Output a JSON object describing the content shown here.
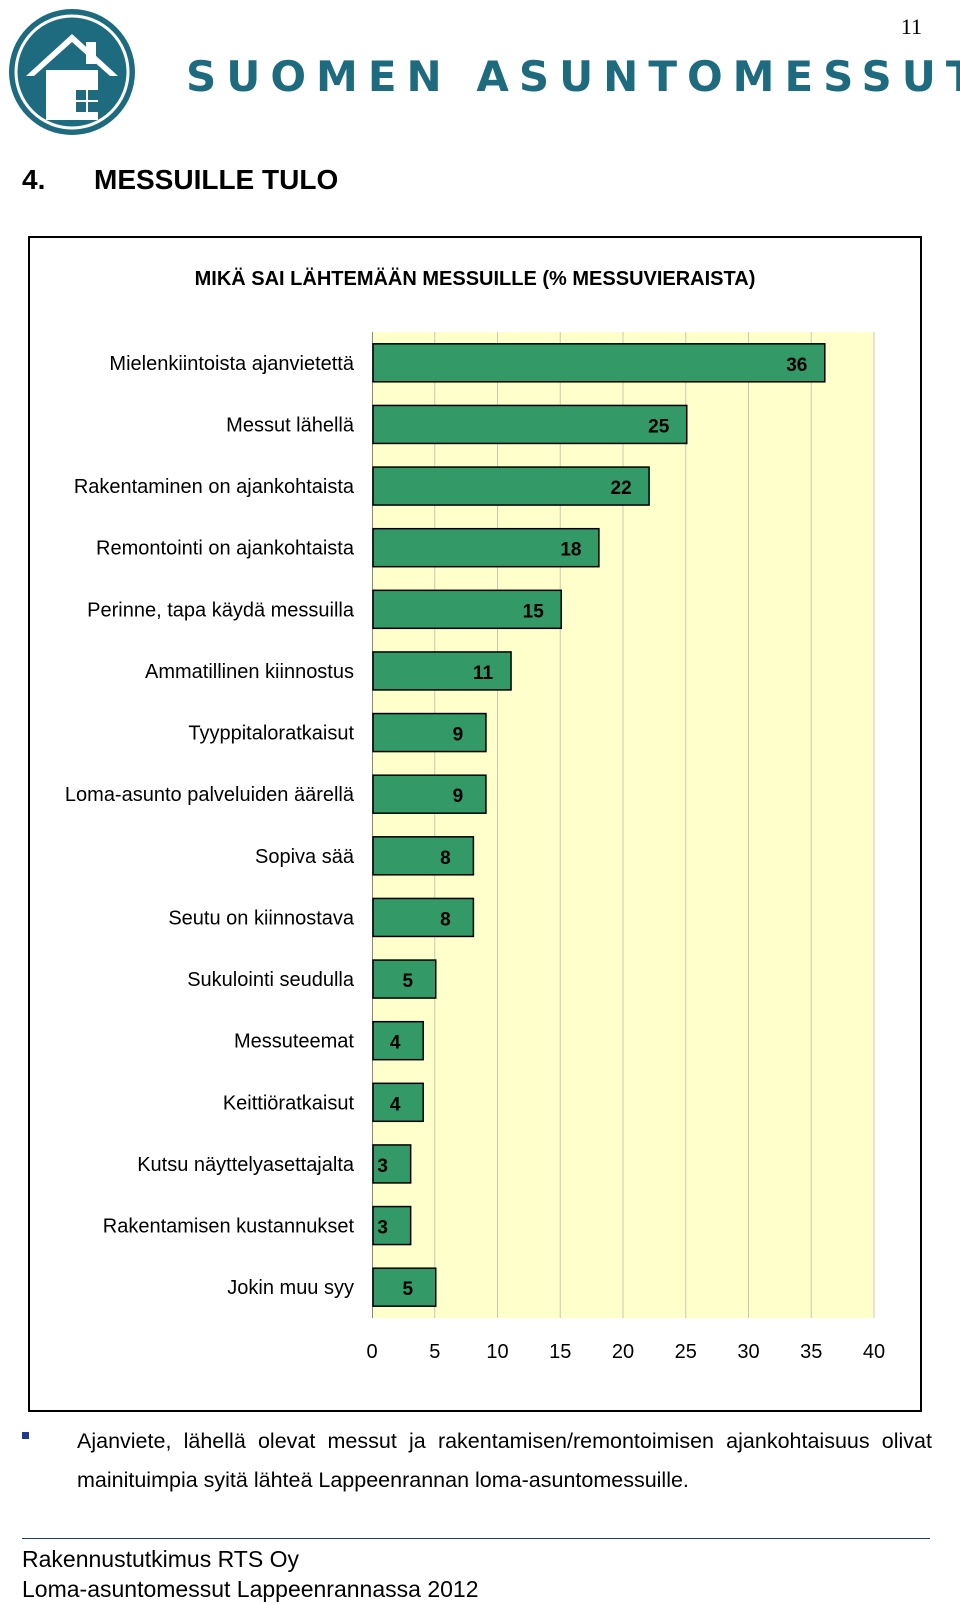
{
  "page": {
    "number": "11",
    "brand": "SUOMEN ASUNTOMESSUT",
    "section_number": "4.",
    "section_title": "MESSUILLE TULO"
  },
  "colors": {
    "brand": "#1e6b80",
    "bar_fill": "#339966",
    "plot_background": "#ffffcc",
    "gridline": "#c8c8b4"
  },
  "chart_data": {
    "type": "bar",
    "orientation": "horizontal",
    "title": "MIKÄ SAI LÄHTEMÄÄN MESSUILLE (% MESSUVIERAISTA)",
    "categories": [
      "Mielenkiintoista ajanvietettä",
      "Messut lähellä",
      "Rakentaminen on ajankohtaista",
      "Remontointi on ajankohtaista",
      "Perinne, tapa käydä messuilla",
      "Ammatillinen kiinnostus",
      "Tyyppitaloratkaisut",
      "Loma-asunto palveluiden äärellä",
      "Sopiva sää",
      "Seutu on kiinnostava",
      "Sukulointi seudulla",
      "Messuteemat",
      "Keittiöratkaisut",
      "Kutsu näyttelyasettajalta",
      "Rakentamisen kustannukset",
      "Jokin muu syy"
    ],
    "values": [
      36,
      25,
      22,
      18,
      15,
      11,
      9,
      9,
      8,
      8,
      5,
      4,
      4,
      3,
      3,
      5
    ],
    "xlim": [
      0,
      40
    ],
    "xticks": [
      0,
      5,
      10,
      15,
      20,
      25,
      30,
      35,
      40
    ],
    "grid": true,
    "legend": "none"
  },
  "summary": {
    "text": "Ajanviete, lähellä olevat messut ja rakentamisen/remontoimisen ajankohtaisuus olivat mainituimpia syitä lähteä Lappeenrannan loma-asuntomessuille."
  },
  "footer": {
    "line1": "Rakennustutkimus RTS Oy",
    "line2": "Loma-asuntomessut Lappeenrannassa 2012"
  }
}
